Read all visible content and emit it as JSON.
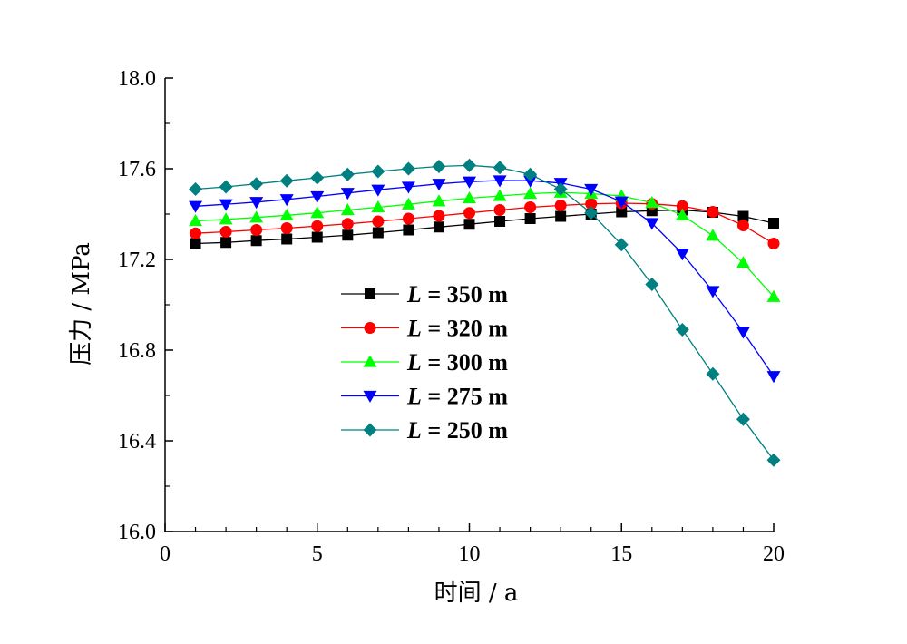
{
  "chart_data": {
    "type": "line",
    "title": "",
    "xlabel": "时间 / a",
    "ylabel": "压力 / MPa",
    "xlim": [
      0,
      20
    ],
    "ylim": [
      16.0,
      18.0
    ],
    "x_ticks": [
      "0",
      "5",
      "10",
      "15",
      "20"
    ],
    "y_ticks": [
      "16.0",
      "16.4",
      "16.8",
      "17.2",
      "17.6",
      "18.0"
    ],
    "grid": false,
    "legend_position": "center-left",
    "x": [
      1,
      2,
      3,
      4,
      5,
      6,
      7,
      8,
      9,
      10,
      11,
      12,
      13,
      14,
      15,
      16,
      17,
      18,
      19,
      20
    ],
    "series": [
      {
        "name": "L = 350 m",
        "name_var": "L",
        "name_rest": " = 350 m",
        "color": "#000000",
        "marker": "square",
        "values": [
          17.27,
          17.275,
          17.283,
          17.29,
          17.298,
          17.307,
          17.318,
          17.33,
          17.343,
          17.355,
          17.368,
          17.38,
          17.39,
          17.4,
          17.41,
          17.415,
          17.418,
          17.408,
          17.39,
          17.36
        ]
      },
      {
        "name": "L = 320 m",
        "name_var": "L",
        "name_rest": " = 320 m",
        "color": "#ff0000",
        "marker": "circle",
        "values": [
          17.315,
          17.322,
          17.33,
          17.338,
          17.347,
          17.357,
          17.368,
          17.38,
          17.392,
          17.405,
          17.418,
          17.43,
          17.438,
          17.445,
          17.448,
          17.445,
          17.435,
          17.41,
          17.35,
          17.27
        ]
      },
      {
        "name": "L = 300 m",
        "name_var": "L",
        "name_rest": " = 300 m",
        "color": "#00ff00",
        "marker": "triangle-up",
        "values": [
          17.37,
          17.377,
          17.385,
          17.395,
          17.405,
          17.418,
          17.43,
          17.443,
          17.457,
          17.47,
          17.48,
          17.49,
          17.495,
          17.49,
          17.48,
          17.45,
          17.395,
          17.305,
          17.185,
          17.035
        ]
      },
      {
        "name": "L = 275 m",
        "name_var": "L",
        "name_rest": " = 275 m",
        "color": "#0000ff",
        "marker": "triangle-down",
        "values": [
          17.435,
          17.443,
          17.453,
          17.465,
          17.478,
          17.493,
          17.507,
          17.52,
          17.533,
          17.543,
          17.548,
          17.547,
          17.537,
          17.51,
          17.455,
          17.36,
          17.225,
          17.06,
          16.88,
          16.685
        ]
      },
      {
        "name": "L = 250 m",
        "name_var": "L",
        "name_rest": " = 250 m",
        "color": "#008080",
        "marker": "diamond",
        "values": [
          17.51,
          17.52,
          17.533,
          17.547,
          17.56,
          17.575,
          17.588,
          17.6,
          17.61,
          17.615,
          17.605,
          17.575,
          17.51,
          17.405,
          17.265,
          17.09,
          16.89,
          16.695,
          16.495,
          16.315
        ]
      }
    ]
  }
}
